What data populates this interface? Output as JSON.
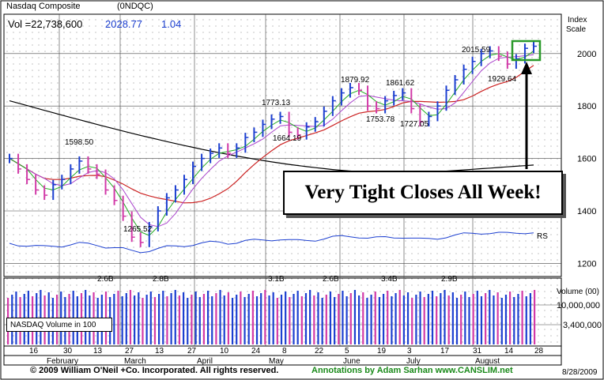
{
  "header": {
    "name": "Nasdaq Composite",
    "symbol": "(0NDQC)",
    "volume_label": "Vol =22,738,600",
    "last_price": "2028.77",
    "change": "1.04",
    "index_scale_label_1": "Index",
    "index_scale_label_2": "Scale"
  },
  "callout_text": "Very Tight Closes All Week!",
  "volume_legend": "NASDAQ Volume in 100",
  "volume_axis_title": "Volume (00)",
  "footer": {
    "copyright": "© 2009 William O'Neil +Co. Incorporated. All rights reserved.",
    "annotation": "Annotations by Adam Sarhan www.CANSLIM.net",
    "date": "8/28/2009"
  },
  "colors": {
    "up_bar": "#1c3fd0",
    "down_bar": "#d23aa8",
    "ma_50": "#cc2222",
    "ma_200": "#000000",
    "ma_10": "#22aa22",
    "ma_21": "#aa44cc",
    "rs_line": "#1c3fd0",
    "highlight_box": "#2a9a2a"
  },
  "chart_data": {
    "type": "line",
    "title": "Nasdaq Composite",
    "ylabel": "Index Scale",
    "ylim": [
      1150,
      2150
    ],
    "y_ticks": [
      1200,
      1400,
      1600,
      1800,
      2000
    ],
    "x_day_labels": [
      "16",
      "30",
      "13",
      "27",
      "13",
      "27",
      "10",
      "24",
      "8",
      "22",
      "5",
      "19",
      "3",
      "17",
      "31",
      "14",
      "28"
    ],
    "x_month_labels": [
      "February",
      "March",
      "April",
      "May",
      "June",
      "July",
      "August"
    ],
    "price_annotations": [
      {
        "label": "1598.50",
        "value": 1598.5
      },
      {
        "label": "1265.52",
        "value": 1265.52
      },
      {
        "label": "1773.13",
        "value": 1773.13
      },
      {
        "label": "1664.19",
        "value": 1664.19
      },
      {
        "label": "1879.92",
        "value": 1879.92
      },
      {
        "label": "1753.78",
        "value": 1753.78
      },
      {
        "label": "1861.62",
        "value": 1861.62
      },
      {
        "label": "1727.05",
        "value": 1727.05
      },
      {
        "label": "2015.59",
        "value": 2015.59
      },
      {
        "label": "1929.64",
        "value": 1929.64
      }
    ],
    "series": [
      {
        "name": "Price (close)",
        "values": [
          1600,
          1560,
          1520,
          1480,
          1460,
          1500,
          1520,
          1560,
          1590,
          1560,
          1540,
          1480,
          1440,
          1380,
          1300,
          1280,
          1340,
          1400,
          1450,
          1480,
          1520,
          1570,
          1600,
          1620,
          1640,
          1620,
          1640,
          1680,
          1700,
          1730,
          1750,
          1760,
          1700,
          1690,
          1720,
          1740,
          1780,
          1820,
          1850,
          1870,
          1860,
          1800,
          1790,
          1820,
          1840,
          1850,
          1790,
          1740,
          1760,
          1800,
          1860,
          1900,
          1940,
          1970,
          2000,
          2010,
          1990,
          1960,
          1980,
          2020,
          2028
        ]
      },
      {
        "name": "RS",
        "values": []
      }
    ],
    "volume": {
      "yticks_labels": [
        "10,000,000",
        "3,400,000"
      ],
      "peak_labels": [
        "2.6B",
        "2.8B",
        "3.1B",
        "2.6B",
        "3.4B",
        "2.9B"
      ]
    },
    "grid": true
  }
}
